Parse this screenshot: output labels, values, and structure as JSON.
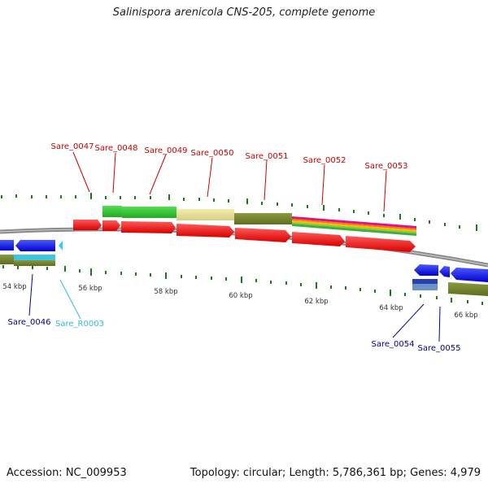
{
  "title": "Salinispora arenicola CNS-205, complete genome",
  "footer": {
    "accession": "Accession: NC_009953",
    "summary": "Topology: circular; Length: 5,786,361 bp; Genes: 4,979"
  },
  "scale_labels": [
    "54 kbp",
    "56 kbp",
    "58 kbp",
    "60 kbp",
    "62 kbp",
    "64 kbp",
    "66 kbp"
  ],
  "gene_labels": {
    "top": [
      "Sare_0047",
      "Sare_0048",
      "Sare_0049",
      "Sare_0050",
      "Sare_0051",
      "Sare_0052",
      "Sare_0053"
    ],
    "bottom": [
      "Sare_0046",
      "Sare_R0003",
      "Sare_0054",
      "Sare_0055"
    ]
  },
  "colors": {
    "forward_gene": "#ff0000",
    "reverse_gene": "#0000ff",
    "rna": "#33ccff",
    "top_label": "#cc0000",
    "bottom_label": "#000099",
    "rna_label": "#33bbdd",
    "backbone": "#8a8a8a",
    "ticks": "#1a7a1a"
  }
}
